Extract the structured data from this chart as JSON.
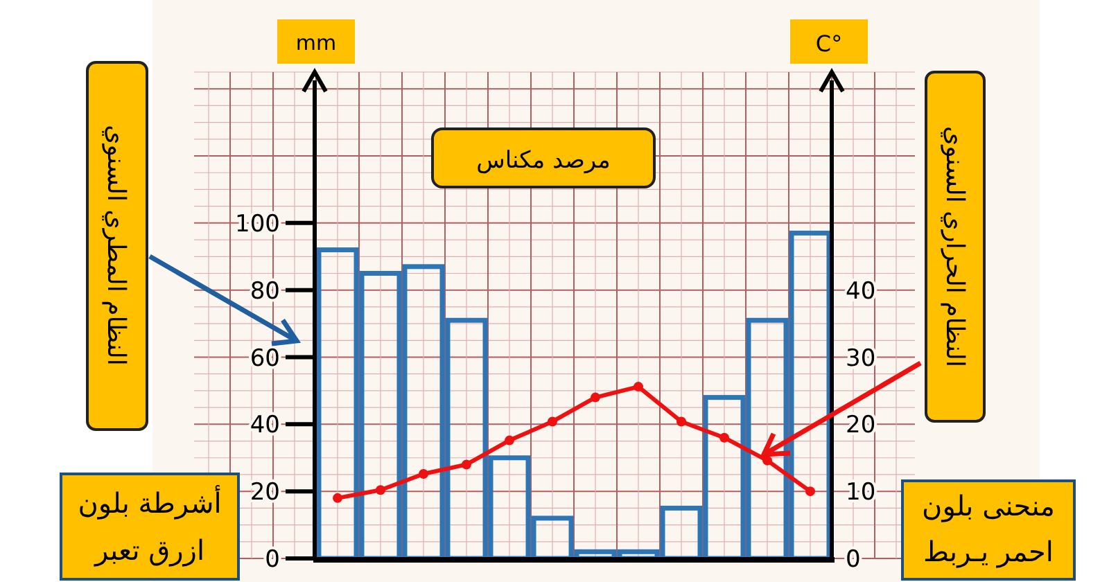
{
  "chart_data": {
    "type": "bar",
    "title": "مرصد مكناس",
    "ylabel": "النظام المطري السنوي",
    "y2label": "النظام الحراري السنوي",
    "categories": [
      null,
      null,
      null,
      null,
      null,
      null,
      null,
      null,
      null,
      null,
      null,
      null
    ],
    "series": [
      {
        "color": "#2e75b6",
        "values": [
          92,
          85,
          87,
          71,
          30,
          12,
          2,
          2,
          15,
          48,
          71,
          97
        ]
      },
      {
        "type": "line",
        "axis": "y2",
        "color": "#ee1111",
        "values": [
          9,
          10.2,
          12.6,
          14,
          17.6,
          20.4,
          24,
          25.6,
          20.4,
          18,
          14.6,
          10
        ]
      }
    ],
    "ylim": [
      0,
      145
    ],
    "yticks": [
      0,
      20,
      40,
      60,
      80,
      100
    ],
    "y2lim": [
      0,
      72.5
    ],
    "y2ticks": [
      0,
      10,
      20,
      30,
      40
    ],
    "marker": "circle",
    "grid": true,
    "annotations": [
      "mm",
      "C°",
      "أشرطة بلون ازرق تعبر",
      "منحنى بلون احمر يـربط"
    ]
  }
}
